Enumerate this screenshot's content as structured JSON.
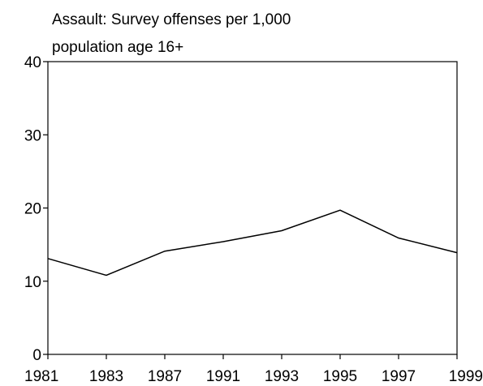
{
  "chart_data": {
    "type": "line",
    "title_lines": [
      "Assault: Survey offenses per 1,000",
      "population age 16+"
    ],
    "xlabel": "",
    "ylabel": "",
    "categories": [
      "1981",
      "1983",
      "1987",
      "1991",
      "1993",
      "1995",
      "1997",
      "1999"
    ],
    "series": [
      {
        "values": [
          13.1,
          10.8,
          14.1,
          15.4,
          16.9,
          19.7,
          15.9,
          13.9
        ]
      }
    ],
    "y_ticks": [
      0,
      10,
      20,
      30,
      40
    ],
    "ylim": [
      0,
      40
    ],
    "grid": false,
    "legend": "none",
    "line_color": "#000000"
  }
}
